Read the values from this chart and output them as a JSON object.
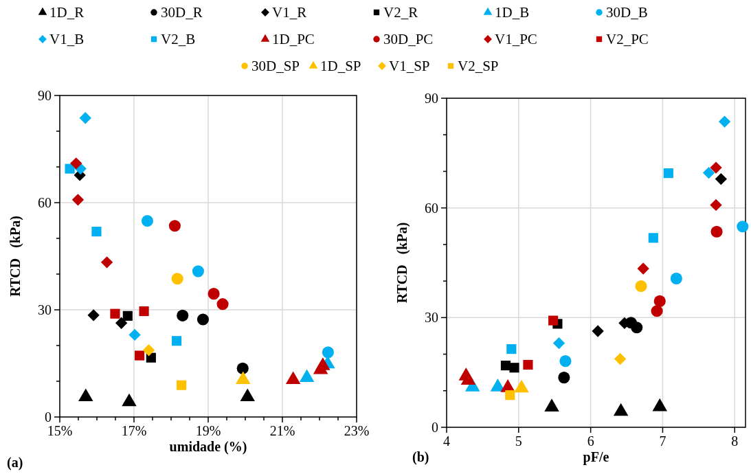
{
  "chart_data": [
    {
      "type": "scatter",
      "xlabel": "umidade (%)",
      "ylabel": "RTCD   (kPa)",
      "annotations": [
        "(a)"
      ],
      "legend": "top",
      "grid": true,
      "xlim": [
        15,
        23
      ],
      "ylim": [
        0,
        90
      ],
      "xticks": [
        {
          "value": 15,
          "label": "15%"
        },
        {
          "value": 15.5,
          "label": null
        },
        {
          "value": 16,
          "label": null
        },
        {
          "value": 16.5,
          "label": null
        },
        {
          "value": 17,
          "label": "17%"
        },
        {
          "value": 17.5,
          "label": null
        },
        {
          "value": 18,
          "label": null
        },
        {
          "value": 18.5,
          "label": null
        },
        {
          "value": 19,
          "label": "19%"
        },
        {
          "value": 19.5,
          "label": null
        },
        {
          "value": 20,
          "label": null
        },
        {
          "value": 20.5,
          "label": null
        },
        {
          "value": 21,
          "label": "21%"
        },
        {
          "value": 21.5,
          "label": null
        },
        {
          "value": 22,
          "label": null
        },
        {
          "value": 22.5,
          "label": null
        },
        {
          "value": 23,
          "label": "23%"
        }
      ],
      "yticks": [
        0,
        {
          "value": 10,
          "label": null
        },
        {
          "value": 20,
          "label": null
        },
        30,
        {
          "value": 40,
          "label": null
        },
        {
          "value": 50,
          "label": null
        },
        60,
        {
          "value": 70,
          "label": null
        },
        {
          "value": 80,
          "label": null
        },
        90
      ],
      "series": [
        {
          "name": "1D_R",
          "color": "#000000",
          "marker": "triangle",
          "x": [
            15.7,
            16.87,
            20.06
          ],
          "values": [
            5.6,
            4.2,
            5.6
          ]
        },
        {
          "name": "30D_R",
          "color": "#000000",
          "marker": "circle",
          "x": [
            18.31,
            18.86,
            19.93
          ],
          "values": [
            28.4,
            27.3,
            13.6
          ]
        },
        {
          "name": "V1_R",
          "color": "#000000",
          "marker": "diamond",
          "x": [
            15.54,
            15.91,
            16.66
          ],
          "values": [
            67.7,
            28.5,
            26.3
          ]
        },
        {
          "name": "V2_R",
          "color": "#000000",
          "marker": "square",
          "x": [
            16.83,
            17.46
          ],
          "values": [
            28.3,
            16.6
          ]
        },
        {
          "name": "1D_B",
          "color": "#00b0f0",
          "marker": "triangle",
          "x": [
            21.66,
            22.22
          ],
          "values": [
            11.0,
            14.8
          ]
        },
        {
          "name": "30D_B",
          "color": "#00b0f0",
          "marker": "circle",
          "x": [
            17.36,
            18.73,
            22.23
          ],
          "values": [
            54.9,
            40.8,
            18.1
          ]
        },
        {
          "name": "V1_B",
          "color": "#00b0f0",
          "marker": "diamond",
          "x": [
            15.69,
            15.56,
            17.02
          ],
          "values": [
            83.7,
            69.5,
            23.0
          ]
        },
        {
          "name": "V2_B",
          "color": "#00b0f0",
          "marker": "square",
          "x": [
            15.27,
            15.99,
            18.15
          ],
          "values": [
            69.5,
            51.9,
            21.3
          ]
        },
        {
          "name": "1D_PC",
          "color": "#c00000",
          "marker": "triangle",
          "x": [
            21.29,
            22.03,
            22.09
          ],
          "values": [
            10.4,
            13.2,
            14.3
          ]
        },
        {
          "name": "30D_PC",
          "color": "#c00000",
          "marker": "circle",
          "x": [
            18.1,
            19.15,
            19.39
          ],
          "values": [
            53.5,
            34.5,
            31.6
          ]
        },
        {
          "name": "V1_PC",
          "color": "#c00000",
          "marker": "diamond",
          "x": [
            15.44,
            15.49,
            16.27
          ],
          "values": [
            71.0,
            60.8,
            43.3
          ]
        },
        {
          "name": "V2_PC",
          "color": "#c00000",
          "marker": "square",
          "x": [
            16.49,
            17.27,
            17.15
          ],
          "values": [
            28.9,
            29.6,
            17.2
          ]
        },
        {
          "name": "30D_SP",
          "color": "#ffc000",
          "marker": "circle",
          "x": [
            18.17
          ],
          "values": [
            38.7
          ]
        },
        {
          "name": "1D_SP",
          "color": "#ffc000",
          "marker": "triangle",
          "x": [
            19.94
          ],
          "values": [
            10.4
          ]
        },
        {
          "name": "V1_SP",
          "color": "#ffc000",
          "marker": "diamond",
          "x": [
            17.4
          ],
          "values": [
            18.7
          ]
        },
        {
          "name": "V2_SP",
          "color": "#ffc000",
          "marker": "square",
          "x": [
            18.28
          ],
          "values": [
            8.9
          ]
        }
      ]
    },
    {
      "type": "scatter",
      "xlabel": "pF/e",
      "ylabel": "RTCD   (kPa)",
      "annotations": [
        "(b)"
      ],
      "grid": true,
      "xlim": [
        4,
        8.15
      ],
      "ylim": [
        0,
        90
      ],
      "xticks": [
        4,
        5,
        6,
        7,
        8
      ],
      "yticks": [
        0,
        {
          "value": 10,
          "label": null
        },
        {
          "value": 20,
          "label": null
        },
        30,
        {
          "value": 40,
          "label": null
        },
        {
          "value": 50,
          "label": null
        },
        60,
        {
          "value": 70,
          "label": null
        },
        {
          "value": 80,
          "label": null
        },
        90
      ],
      "series": [
        {
          "color": "#000000",
          "marker": "triangle",
          "x": [
            5.46,
            6.42,
            6.96
          ],
          "values": [
            5.5,
            4.3,
            5.6
          ]
        },
        {
          "color": "#000000",
          "marker": "circle",
          "x": [
            6.56,
            6.64,
            5.63
          ],
          "values": [
            28.6,
            27.3,
            13.6
          ]
        },
        {
          "color": "#000000",
          "marker": "diamond",
          "x": [
            7.81,
            6.47,
            6.1
          ],
          "values": [
            67.9,
            28.5,
            26.3
          ]
        },
        {
          "color": "#000000",
          "marker": "square",
          "x": [
            4.82,
            4.94,
            5.54
          ],
          "values": [
            16.9,
            16.3,
            28.3
          ]
        },
        {
          "color": "#00b0f0",
          "marker": "triangle",
          "x": [
            4.36,
            4.71
          ],
          "values": [
            11.0,
            11.0
          ]
        },
        {
          "color": "#00b0f0",
          "marker": "circle",
          "x": [
            8.11,
            7.19,
            5.65
          ],
          "values": [
            54.9,
            40.7,
            18.1
          ]
        },
        {
          "color": "#00b0f0",
          "marker": "diamond",
          "x": [
            7.86,
            7.64,
            5.56
          ],
          "values": [
            83.6,
            69.6,
            23.0
          ]
        },
        {
          "color": "#00b0f0",
          "marker": "square",
          "x": [
            7.08,
            6.87,
            4.9
          ],
          "values": [
            69.5,
            51.8,
            21.4
          ]
        },
        {
          "color": "#c00000",
          "marker": "triangle",
          "x": [
            4.27,
            4.3,
            4.85
          ],
          "values": [
            14.0,
            12.8,
            10.8
          ]
        },
        {
          "color": "#c00000",
          "marker": "circle",
          "x": [
            7.75,
            6.96,
            6.92
          ],
          "values": [
            53.5,
            34.5,
            31.8
          ]
        },
        {
          "color": "#c00000",
          "marker": "diamond",
          "x": [
            7.74,
            7.74,
            6.73
          ],
          "values": [
            71.0,
            60.8,
            43.4
          ]
        },
        {
          "color": "#c00000",
          "marker": "square",
          "x": [
            5.48,
            5.13
          ],
          "values": [
            29.2,
            17.1
          ]
        },
        {
          "color": "#ffc000",
          "marker": "circle",
          "x": [
            6.7
          ],
          "values": [
            38.6
          ]
        },
        {
          "color": "#ffc000",
          "marker": "triangle",
          "x": [
            5.04
          ],
          "values": [
            10.7
          ]
        },
        {
          "color": "#ffc000",
          "marker": "diamond",
          "x": [
            6.41
          ],
          "values": [
            18.7
          ]
        },
        {
          "color": "#ffc000",
          "marker": "square",
          "x": [
            4.88
          ],
          "values": [
            8.8
          ]
        }
      ]
    }
  ]
}
